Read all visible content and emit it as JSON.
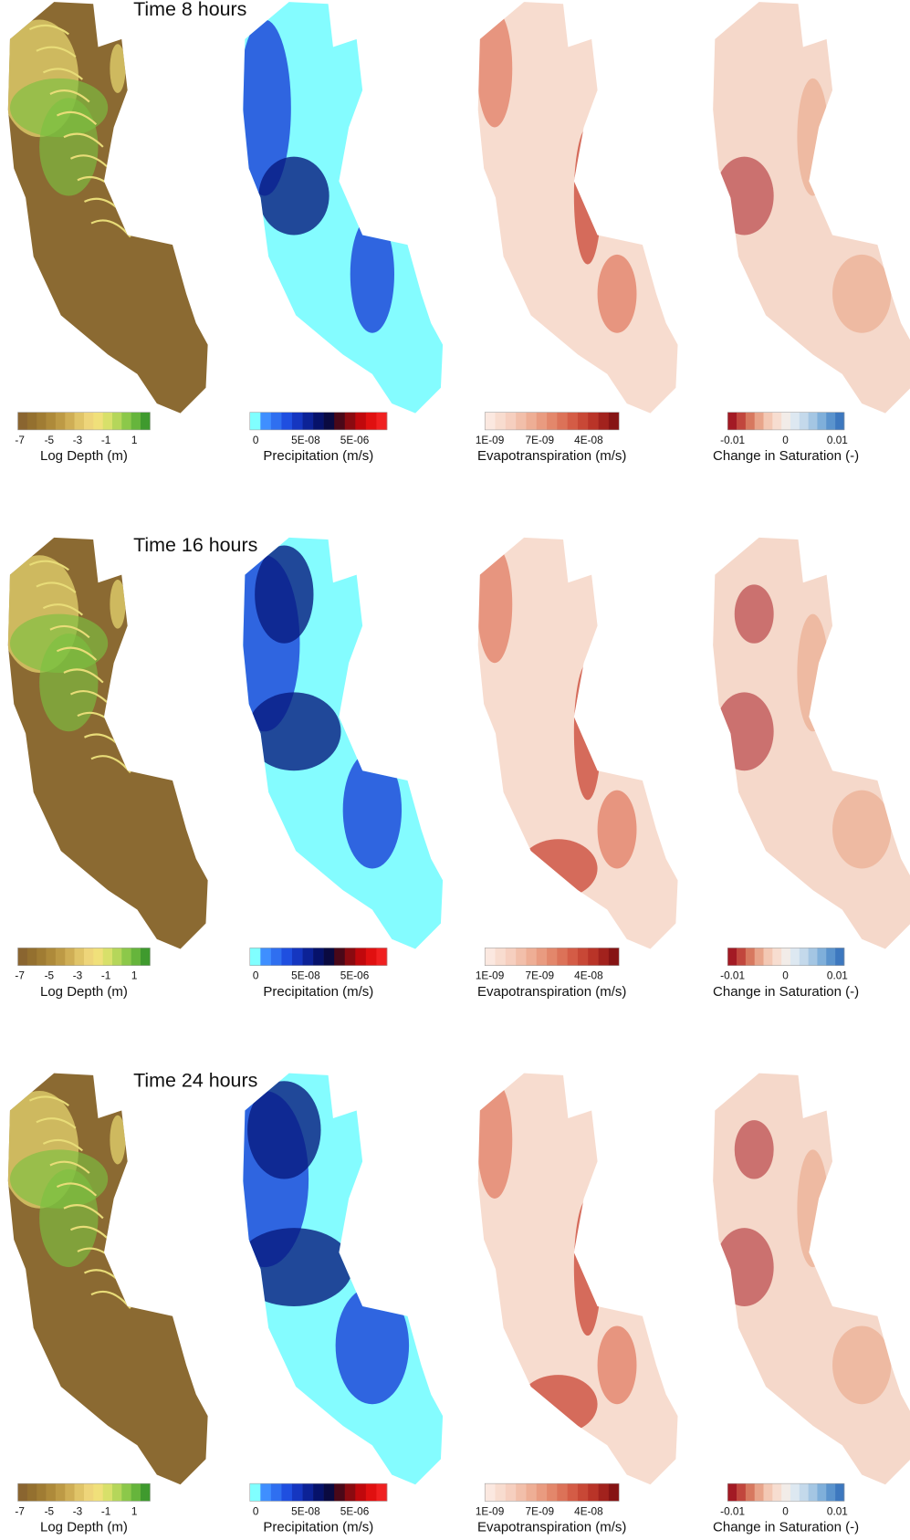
{
  "rows": [
    {
      "title": "Time  8 hours",
      "panels": [
        {
          "ticks": [
            "-7",
            "-5",
            "-3",
            "-1",
            "1"
          ],
          "label": "Log Depth (m)"
        },
        {
          "ticks": [
            "0",
            "5E-08",
            "5E-06"
          ],
          "label": "Precipitation (m/s)"
        },
        {
          "ticks": [
            "1E-09",
            "7E-09",
            "4E-08"
          ],
          "label": "Evapotranspiration (m/s)"
        },
        {
          "ticks": [
            "-0.01",
            "0",
            "0.01"
          ],
          "label": "Change in Saturation (-)"
        }
      ]
    },
    {
      "title": "Time 16 hours",
      "panels": [
        {
          "ticks": [
            "-7",
            "-5",
            "-3",
            "-1",
            "1"
          ],
          "label": "Log Depth (m)"
        },
        {
          "ticks": [
            "0",
            "5E-08",
            "5E-06"
          ],
          "label": "Precipitation (m/s)"
        },
        {
          "ticks": [
            "1E-09",
            "7E-09",
            "4E-08"
          ],
          "label": "Evapotranspiration (m/s)"
        },
        {
          "ticks": [
            "-0.01",
            "0",
            "0.01"
          ],
          "label": "Change in Saturation (-)"
        }
      ]
    },
    {
      "title": "Time 24 hours",
      "panels": [
        {
          "ticks": [
            "-7",
            "-5",
            "-3",
            "-1",
            "1"
          ],
          "label": "Log Depth (m)"
        },
        {
          "ticks": [
            "0",
            "5E-08",
            "5E-06"
          ],
          "label": "Precipitation (m/s)"
        },
        {
          "ticks": [
            "1E-09",
            "7E-09",
            "4E-08"
          ],
          "label": "Evapotranspiration (m/s)"
        },
        {
          "ticks": [
            "-0.01",
            "0",
            "0.01"
          ],
          "label": "Change in Saturation (-)"
        }
      ]
    }
  ]
}
